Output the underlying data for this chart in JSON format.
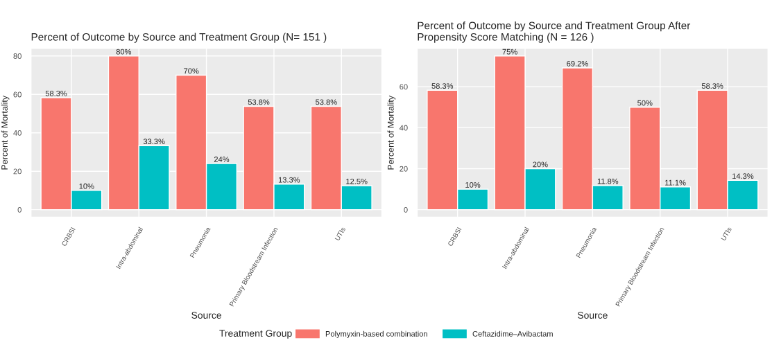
{
  "chart_data": [
    {
      "type": "bar",
      "title": "Percent of Outcome by Source and Treatment Group (N= 151 )",
      "xlabel": "Source",
      "ylabel": "Percent of Mortality",
      "categories": [
        "CRBSI",
        "Intra-abdominal",
        "Pneumonia",
        "Primary Bloodstream Infection",
        "UTIs"
      ],
      "series": [
        {
          "name": "Polymyxin-based combination",
          "color": "#f8766d",
          "values": [
            58.3,
            80,
            70,
            53.8,
            53.8
          ],
          "value_labels": [
            "58.3%",
            "80%",
            "70%",
            "53.8%",
            "53.8%"
          ]
        },
        {
          "name": "Ceftazidime–Avibactam",
          "color": "#00bfc4",
          "values": [
            10,
            33.3,
            24,
            13.3,
            12.5
          ],
          "value_labels": [
            "10%",
            "33.3%",
            "24%",
            "13.3%",
            "12.5%"
          ]
        }
      ],
      "ylim": [
        -4,
        84
      ],
      "yticks": [
        0,
        20,
        40,
        60,
        80
      ],
      "grid": true,
      "legend": "bottom",
      "legend_title": "Treatment Group"
    },
    {
      "type": "bar",
      "title": "Percent of Outcome by Source and Treatment Group After\nPropensity Score Matching (N = 126 )",
      "xlabel": "Source",
      "ylabel": "Percent of Mortality",
      "categories": [
        "CRBSI",
        "Intra-abdominal",
        "Pneumonia",
        "Primary Bloodstream Infection",
        "UTIs"
      ],
      "series": [
        {
          "color": "#f8766d",
          "values": [
            58.3,
            75,
            69.2,
            50,
            58.3
          ],
          "value_labels": [
            "58.3%",
            "75%",
            "69.2%",
            "50%",
            "58.3%"
          ]
        },
        {
          "color": "#00bfc4",
          "values": [
            10,
            20,
            11.8,
            11.1,
            14.3
          ],
          "value_labels": [
            "10%",
            "20%",
            "11.8%",
            "11.1%",
            "14.3%"
          ]
        }
      ],
      "ylim": [
        -3.75,
        78.75
      ],
      "yticks": [
        0,
        20,
        40,
        60
      ],
      "grid": true
    }
  ]
}
